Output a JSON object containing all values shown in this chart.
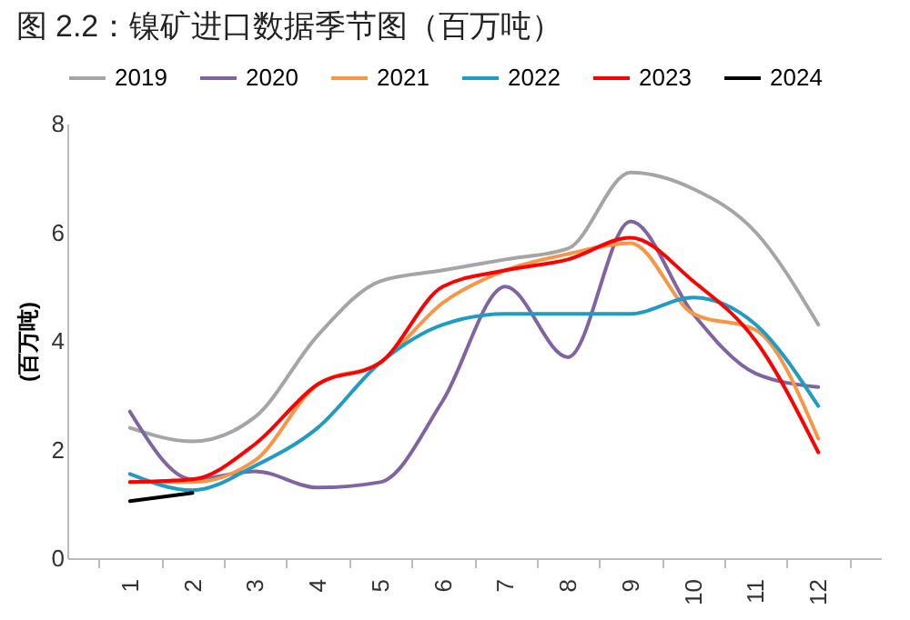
{
  "chart_data": {
    "type": "line",
    "title": "图 2.2：镍矿进口数据季节图（百万吨）",
    "ylabel": "(百万吨)",
    "categories": [
      "1",
      "2",
      "3",
      "4",
      "5",
      "6",
      "7",
      "8",
      "9",
      "10",
      "11",
      "12"
    ],
    "ylim": [
      0,
      8
    ],
    "yticks": [
      0,
      2,
      4,
      6,
      8
    ],
    "grid": false,
    "legend": "top",
    "series": [
      {
        "name": "2019",
        "color": "#a5a5a5",
        "values": [
          2.4,
          2.15,
          2.6,
          4.1,
          5.1,
          5.3,
          5.5,
          5.7,
          7.1,
          6.8,
          6.0,
          4.3
        ]
      },
      {
        "name": "2020",
        "color": "#8064a2",
        "values": [
          2.7,
          1.45,
          1.6,
          1.3,
          1.4,
          2.9,
          5.0,
          3.7,
          6.2,
          4.5,
          3.4,
          3.15
        ]
      },
      {
        "name": "2021",
        "color": "#f79646",
        "values": [
          1.4,
          1.4,
          1.8,
          3.2,
          3.6,
          4.7,
          5.3,
          5.6,
          5.8,
          4.5,
          4.2,
          2.2
        ]
      },
      {
        "name": "2022",
        "color": "#1f9bc5",
        "values": [
          1.55,
          1.25,
          1.7,
          2.4,
          3.6,
          4.3,
          4.5,
          4.5,
          4.5,
          4.8,
          4.3,
          2.8
        ]
      },
      {
        "name": "2023",
        "color": "#ff0000",
        "values": [
          1.4,
          1.45,
          2.1,
          3.2,
          3.6,
          5.0,
          5.3,
          5.5,
          5.9,
          5.1,
          4.0,
          1.95
        ]
      },
      {
        "name": "2024",
        "color": "#000000",
        "values": [
          1.05,
          1.2,
          null,
          null,
          null,
          null,
          null,
          null,
          null,
          null,
          null,
          null
        ]
      }
    ]
  }
}
